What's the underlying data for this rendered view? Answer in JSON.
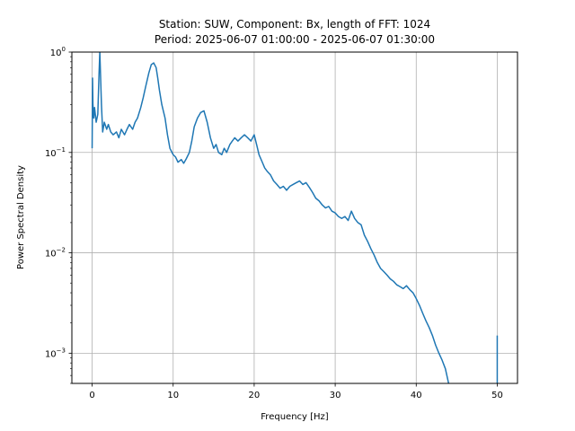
{
  "chart_data": {
    "type": "line",
    "title_line1": "Station: SUW, Component: Bx, length of FFT: 1024",
    "title_line2": "Period: 2025-06-07 01:00:00 - 2025-06-07 01:30:00",
    "xlabel": "Frequency [Hz]",
    "ylabel": "Power Spectral Density",
    "xlim": [
      -2.5,
      52.5
    ],
    "ylim": [
      0.0005,
      1
    ],
    "yscale": "log",
    "grid": true,
    "line_color": "#1f77b4",
    "x_ticks": [
      {
        "value": 0,
        "label": "0"
      },
      {
        "value": 10,
        "label": "10"
      },
      {
        "value": 20,
        "label": "20"
      },
      {
        "value": 30,
        "label": "30"
      },
      {
        "value": 40,
        "label": "40"
      },
      {
        "value": 50,
        "label": "50"
      }
    ],
    "y_ticks": [
      {
        "value": 0.001,
        "base": "10",
        "exp": "−3"
      },
      {
        "value": 0.01,
        "base": "10",
        "exp": "−2"
      },
      {
        "value": 0.1,
        "base": "10",
        "exp": "−1"
      },
      {
        "value": 1,
        "base": "10",
        "exp": "0"
      }
    ],
    "series": [
      {
        "x": [
          0.0,
          0.05,
          0.1,
          0.2,
          0.3,
          0.5,
          0.7,
          0.85,
          0.95,
          1.05,
          1.15,
          1.3,
          1.5,
          1.8,
          2.0,
          2.3,
          2.6,
          3.0,
          3.3,
          3.6,
          4.0,
          4.3,
          4.6,
          5.0,
          5.3,
          5.6,
          6.0,
          6.3,
          6.6,
          7.0,
          7.3,
          7.6,
          7.9,
          8.1,
          8.3,
          8.6,
          9.0,
          9.3,
          9.6,
          10.0,
          10.3,
          10.6,
          11.0,
          11.3,
          11.6,
          12.0,
          12.3,
          12.6,
          13.0,
          13.4,
          13.8,
          14.2,
          14.6,
          15.0,
          15.3,
          15.6,
          16.0,
          16.3,
          16.6,
          17.0,
          17.3,
          17.6,
          18.0,
          18.4,
          18.8,
          19.2,
          19.6,
          20.0,
          20.3,
          20.6,
          21.0,
          21.3,
          21.6,
          22.0,
          22.4,
          22.8,
          23.2,
          23.6,
          24.0,
          24.4,
          24.8,
          25.2,
          25.6,
          26.0,
          26.4,
          26.8,
          27.2,
          27.6,
          28.0,
          28.4,
          28.8,
          29.2,
          29.6,
          30.0,
          30.4,
          30.8,
          31.2,
          31.6,
          32.0,
          32.4,
          32.8,
          33.2,
          33.6,
          34.0,
          34.4,
          34.8,
          35.2,
          35.6,
          36.0,
          36.4,
          36.8,
          37.2,
          37.6,
          38.0,
          38.4,
          38.8,
          39.2,
          39.6,
          40.0,
          40.4,
          40.8,
          41.2,
          41.6,
          42.0,
          42.4,
          42.8,
          43.2,
          43.6,
          44.0
        ],
        "y": [
          0.11,
          0.55,
          0.3,
          0.22,
          0.28,
          0.2,
          0.24,
          0.6,
          1.0,
          0.55,
          0.3,
          0.16,
          0.2,
          0.17,
          0.19,
          0.16,
          0.15,
          0.16,
          0.14,
          0.17,
          0.15,
          0.17,
          0.19,
          0.17,
          0.2,
          0.22,
          0.28,
          0.35,
          0.45,
          0.62,
          0.75,
          0.78,
          0.7,
          0.55,
          0.42,
          0.3,
          0.22,
          0.15,
          0.11,
          0.095,
          0.09,
          0.08,
          0.085,
          0.078,
          0.086,
          0.1,
          0.13,
          0.18,
          0.22,
          0.25,
          0.26,
          0.2,
          0.14,
          0.11,
          0.12,
          0.1,
          0.095,
          0.11,
          0.1,
          0.12,
          0.13,
          0.14,
          0.13,
          0.14,
          0.15,
          0.14,
          0.13,
          0.15,
          0.12,
          0.095,
          0.08,
          0.07,
          0.065,
          0.06,
          0.052,
          0.048,
          0.044,
          0.046,
          0.042,
          0.046,
          0.048,
          0.05,
          0.052,
          0.048,
          0.05,
          0.045,
          0.04,
          0.035,
          0.033,
          0.03,
          0.028,
          0.029,
          0.026,
          0.025,
          0.023,
          0.022,
          0.023,
          0.021,
          0.026,
          0.022,
          0.02,
          0.019,
          0.015,
          0.013,
          0.011,
          0.0095,
          0.008,
          0.007,
          0.0065,
          0.006,
          0.0055,
          0.0052,
          0.0048,
          0.0046,
          0.0044,
          0.0047,
          0.0043,
          0.004,
          0.0035,
          0.003,
          0.0025,
          0.0021,
          0.0018,
          0.0015,
          0.0012,
          0.001,
          0.00085,
          0.0007,
          0.0005
        ]
      },
      {
        "x": [
          50.0,
          50.0
        ],
        "y": [
          0.0005,
          0.0015
        ]
      }
    ]
  }
}
